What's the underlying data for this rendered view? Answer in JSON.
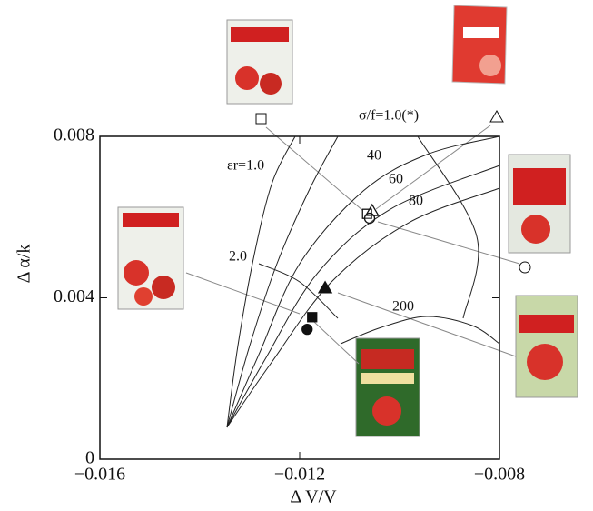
{
  "chart_data": {
    "type": "scatter",
    "xlabel": "Δ V/V",
    "ylabel": "Δ α/k",
    "xlim": [
      -0.016,
      -0.008
    ],
    "ylim": [
      0,
      0.008
    ],
    "xticks": [
      {
        "value": -0.016,
        "label": "−0.016"
      },
      {
        "value": -0.012,
        "label": "−0.012"
      },
      {
        "value": -0.008,
        "label": "−0.008"
      }
    ],
    "yticks": [
      0,
      0.004,
      0.008
    ],
    "color": "#111111",
    "points": [
      {
        "marker": "square",
        "filled": false,
        "x": -0.01065,
        "y": 0.00608
      },
      {
        "marker": "triangle",
        "filled": false,
        "x": -0.01055,
        "y": 0.00615
      },
      {
        "marker": "circle",
        "filled": false,
        "x": -0.0106,
        "y": 0.00597
      },
      {
        "marker": "triangle",
        "filled": true,
        "x": -0.01149,
        "y": 0.00424
      },
      {
        "marker": "square",
        "filled": true,
        "x": -0.01175,
        "y": 0.00352
      },
      {
        "marker": "circle",
        "filled": true,
        "x": -0.01185,
        "y": 0.00322
      }
    ],
    "curves": [
      {
        "x": [
          -0.013455,
          -0.013236,
          -0.012909,
          -0.012545,
          -0.012091
        ],
        "y": [
          0.00079,
          0.002817,
          0.00507,
          0.006873,
          0.008
        ]
      },
      {
        "x": [
          -0.013455,
          -0.013,
          -0.012455,
          -0.011818,
          -0.011236
        ],
        "y": [
          0.00079,
          0.002817,
          0.004845,
          0.006648,
          0.008
        ]
      },
      {
        "x": [
          -0.013455,
          -0.012818,
          -0.012,
          -0.010727,
          -0.009455,
          -0.008
        ],
        "y": [
          0.00079,
          0.002592,
          0.004845,
          0.006648,
          0.007549,
          0.008
        ]
      },
      {
        "x": [
          -0.013455,
          -0.012691,
          -0.011636,
          -0.010182,
          -0.008
        ],
        "y": [
          0.00079,
          0.002479,
          0.00462,
          0.006197,
          0.007279
        ]
      },
      {
        "x": [
          -0.013455,
          -0.012582,
          -0.011364,
          -0.009818,
          -0.008
        ],
        "y": [
          0.00079,
          0.002366,
          0.004394,
          0.005859,
          0.006716
        ]
      },
      {
        "x": [
          -0.012818,
          -0.012,
          -0.011236
        ],
        "y": [
          0.004845,
          0.004394,
          0.003493
        ]
      },
      {
        "x": [
          -0.011182,
          -0.010364,
          -0.009455,
          -0.008545,
          -0.008
        ],
        "y": [
          0.002862,
          0.003268,
          0.003538,
          0.003313,
          0.002862
        ]
      },
      {
        "x": [
          -0.009636,
          -0.008455,
          -0.008727
        ],
        "y": [
          0.008,
          0.005521,
          0.003493
        ]
      }
    ],
    "annotations": [
      "εr=1.0",
      "40",
      "60",
      "80",
      "2.0",
      "200",
      "σ/f=1.0(*)"
    ]
  }
}
